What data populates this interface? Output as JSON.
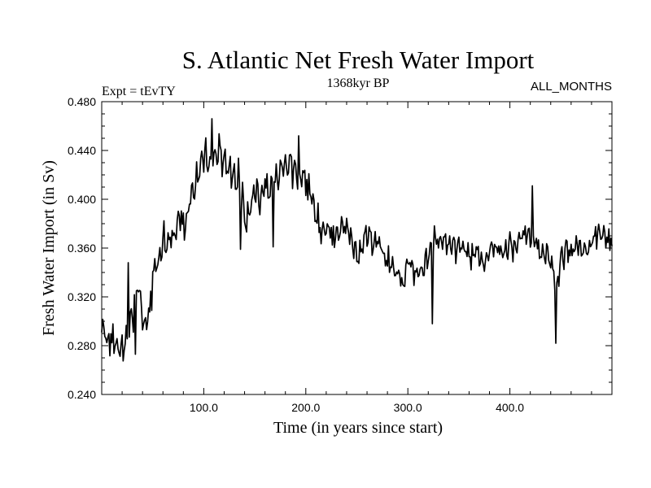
{
  "chart_data": {
    "type": "line",
    "title": "S. Atlantic Net Fresh Water Import",
    "left_note": "Expt = tEvTY",
    "center_note": "1368kyr BP",
    "right_note": "ALL_MONTHS",
    "xlabel": "Time (in years since start)",
    "ylabel": "Fresh Water Import (in Sv)",
    "xlim": [
      0,
      500
    ],
    "ylim": [
      0.24,
      0.48
    ],
    "x_ticks": [
      100,
      200,
      300,
      400
    ],
    "x_tick_labels": [
      "100.0",
      "200.0",
      "300.0",
      "400.0"
    ],
    "y_ticks": [
      0.24,
      0.28,
      0.32,
      0.36,
      0.4,
      0.44,
      0.48
    ],
    "y_tick_labels": [
      "0.240",
      "0.280",
      "0.320",
      "0.360",
      "0.400",
      "0.440",
      "0.480"
    ],
    "line_color": "#000000",
    "series": [
      {
        "name": "fresh water import",
        "start_year": 1,
        "step_years": 5,
        "values": [
          0.292,
          0.282,
          0.286,
          0.279,
          0.276,
          0.288,
          0.314,
          0.332,
          0.296,
          0.301,
          0.341,
          0.352,
          0.366,
          0.364,
          0.372,
          0.384,
          0.376,
          0.398,
          0.408,
          0.422,
          0.437,
          0.425,
          0.438,
          0.442,
          0.432,
          0.426,
          0.418,
          0.414,
          0.382,
          0.396,
          0.405,
          0.401,
          0.412,
          0.408,
          0.416,
          0.421,
          0.425,
          0.429,
          0.418,
          0.424,
          0.411,
          0.396,
          0.384,
          0.372,
          0.377,
          0.366,
          0.374,
          0.382,
          0.376,
          0.364,
          0.352,
          0.368,
          0.374,
          0.361,
          0.366,
          0.355,
          0.349,
          0.341,
          0.336,
          0.332,
          0.348,
          0.344,
          0.336,
          0.345,
          0.359,
          0.368,
          0.366,
          0.364,
          0.365,
          0.361,
          0.359,
          0.356,
          0.352,
          0.357,
          0.354,
          0.346,
          0.359,
          0.361,
          0.355,
          0.358,
          0.362,
          0.361,
          0.367,
          0.372,
          0.364,
          0.365,
          0.352,
          0.359,
          0.348,
          0.334,
          0.351,
          0.361,
          0.356,
          0.362,
          0.361,
          0.358,
          0.368,
          0.373,
          0.369,
          0.365
        ]
      }
    ]
  }
}
